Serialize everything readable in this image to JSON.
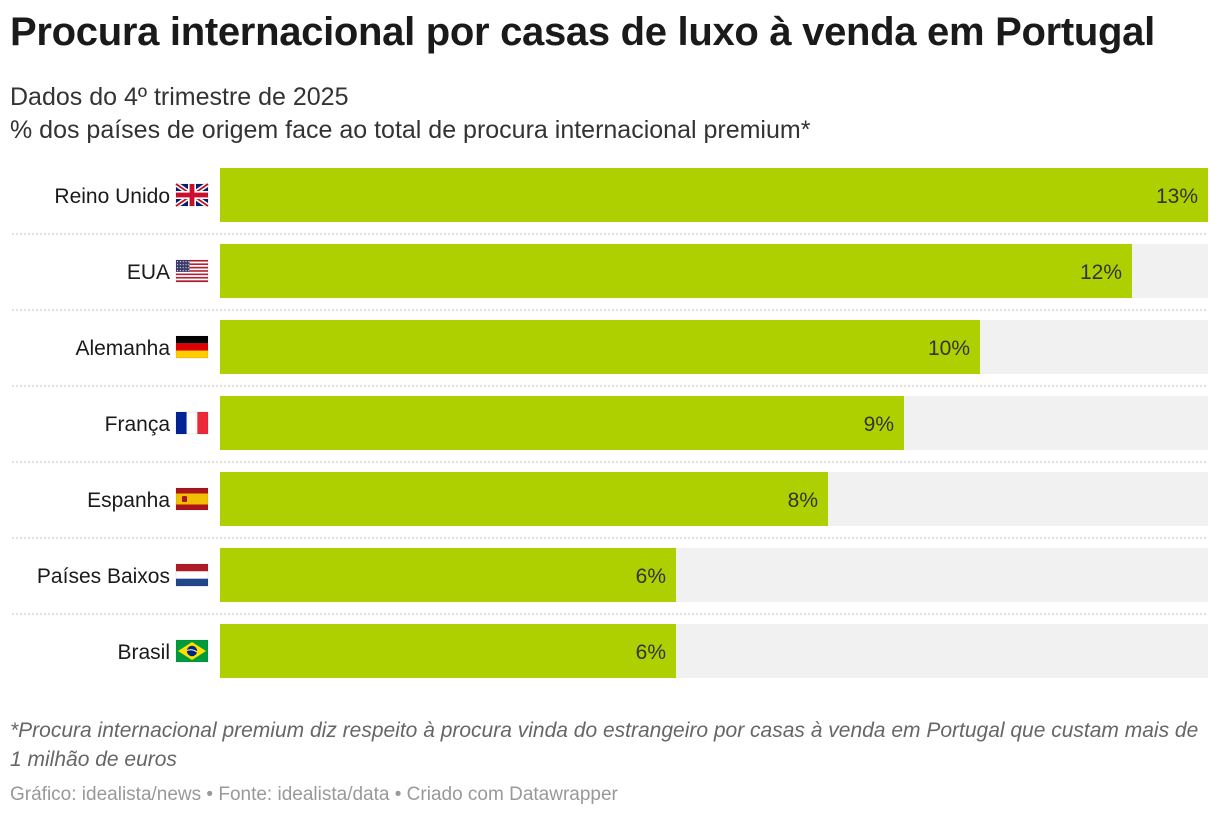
{
  "header": {
    "title": "Procura internacional por casas de luxo à venda em Portugal",
    "subtitle_1": "Dados do 4º trimestre de 2025",
    "subtitle_2": "% dos países de origem face ao total de procura internacional premium*"
  },
  "chart_data": {
    "type": "bar",
    "orientation": "horizontal",
    "categories": [
      "Reino Unido",
      "EUA",
      "Alemanha",
      "França",
      "Espanha",
      "Países Baixos",
      "Brasil"
    ],
    "flags": [
      "uk-flag",
      "usa-flag",
      "germany-flag",
      "france-flag",
      "spain-flag",
      "netherlands-flag",
      "brazil-flag"
    ],
    "values": [
      13,
      12,
      10,
      9,
      8,
      6,
      6
    ],
    "labels": [
      "13%",
      "12%",
      "10%",
      "9%",
      "8%",
      "6%",
      "6%"
    ],
    "xlim": [
      0,
      13
    ],
    "bar_color": "#afd000",
    "track_color": "#f1f1f1",
    "grid": false
  },
  "note": "*Procura internacional premium diz respeito à procura vinda do estrangeiro por casas à venda em Portugal que custam mais de 1 milhão de euros",
  "footer": "Gráfico: idealista/news • Fonte: idealista/data • Criado com Datawrapper"
}
